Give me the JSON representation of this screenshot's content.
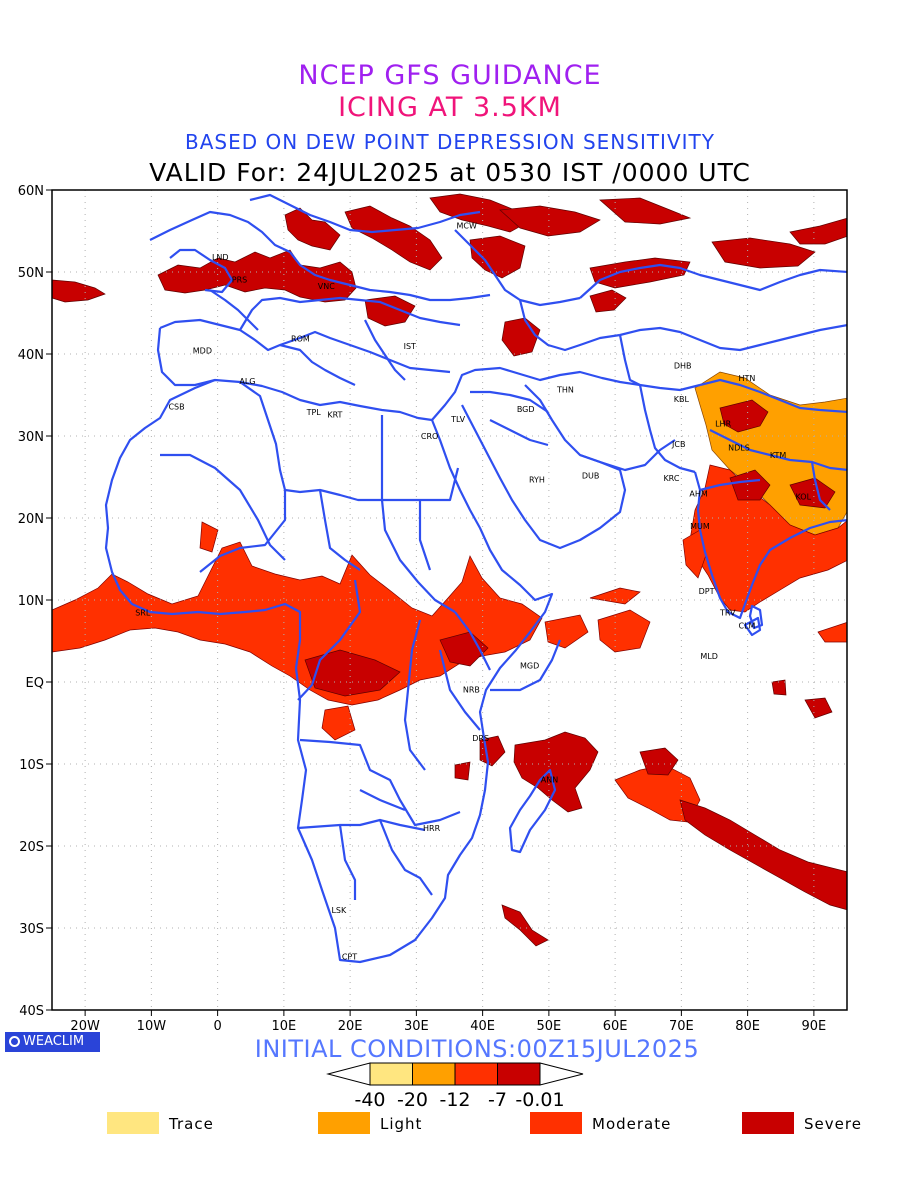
{
  "titles": {
    "line1": "NCEP GFS GUIDANCE",
    "line2": "ICING AT 3.5KM",
    "line3": "BASED ON DEW POINT DEPRESSION SENSITIVITY",
    "line4": "VALID For: 24JUL2025 at 0530 IST /0000 UTC"
  },
  "initial_conditions": "INITIAL CONDITIONS:00Z15JUL2025",
  "logo": "WEACLIM",
  "lon_ticks": [
    "20W",
    "10W",
    "0",
    "10E",
    "20E",
    "30E",
    "40E",
    "50E",
    "60E",
    "70E",
    "80E",
    "90E"
  ],
  "lat_ticks": [
    "60N",
    "50N",
    "40N",
    "30N",
    "20N",
    "10N",
    "EQ",
    "10S",
    "20S",
    "30S",
    "40S"
  ],
  "colorbar": {
    "colors": [
      "#ffe680",
      "#ffa000",
      "#ff3000",
      "#c80000"
    ],
    "labels": [
      "-40",
      "-20",
      "-12",
      "-7",
      "-0.01"
    ]
  },
  "legend": [
    {
      "label": "Trace",
      "color": "#ffe680"
    },
    {
      "label": "Light",
      "color": "#ffa000"
    },
    {
      "label": "Moderate",
      "color": "#ff3000"
    },
    {
      "label": "Severe",
      "color": "#c80000"
    }
  ],
  "stations": [
    {
      "code": "MCW",
      "lon": 37.6,
      "lat": 55.7
    },
    {
      "code": "LND",
      "lon": 0.4,
      "lat": 51.8
    },
    {
      "code": "PRS",
      "lon": 3.3,
      "lat": 49.1
    },
    {
      "code": "VNC",
      "lon": 16.4,
      "lat": 48.3
    },
    {
      "code": "ROM",
      "lon": 12.5,
      "lat": 41.9
    },
    {
      "code": "MDD",
      "lon": -2.3,
      "lat": 40.4
    },
    {
      "code": "IST",
      "lon": 29.0,
      "lat": 41.0
    },
    {
      "code": "ALG",
      "lon": 4.5,
      "lat": 36.7
    },
    {
      "code": "CSB",
      "lon": -6.2,
      "lat": 33.6
    },
    {
      "code": "TPL",
      "lon": 14.5,
      "lat": 32.9
    },
    {
      "code": "KRT",
      "lon": 17.7,
      "lat": 32.6
    },
    {
      "code": "CRO",
      "lon": 32.0,
      "lat": 30.0
    },
    {
      "code": "TLV",
      "lon": 36.3,
      "lat": 32.1
    },
    {
      "code": "BGD",
      "lon": 46.5,
      "lat": 33.3
    },
    {
      "code": "THN",
      "lon": 52.5,
      "lat": 35.7
    },
    {
      "code": "RYH",
      "lon": 48.2,
      "lat": 24.7
    },
    {
      "code": "DUB",
      "lon": 56.3,
      "lat": 25.2
    },
    {
      "code": "DHB",
      "lon": 70.2,
      "lat": 38.6
    },
    {
      "code": "KBL",
      "lon": 70.0,
      "lat": 34.5
    },
    {
      "code": "HTN",
      "lon": 79.9,
      "lat": 37.1
    },
    {
      "code": "JCB",
      "lon": 69.6,
      "lat": 29.0
    },
    {
      "code": "KRC",
      "lon": 68.5,
      "lat": 24.9
    },
    {
      "code": "AHM",
      "lon": 72.6,
      "lat": 23.0
    },
    {
      "code": "LHR",
      "lon": 76.3,
      "lat": 31.5
    },
    {
      "code": "NDLS",
      "lon": 78.7,
      "lat": 28.6
    },
    {
      "code": "KTM",
      "lon": 84.6,
      "lat": 27.7
    },
    {
      "code": "KOL",
      "lon": 88.4,
      "lat": 22.6
    },
    {
      "code": "MUM",
      "lon": 72.8,
      "lat": 19.0
    },
    {
      "code": "DPT",
      "lon": 73.8,
      "lat": 11.1
    },
    {
      "code": "TRV",
      "lon": 77.0,
      "lat": 8.5
    },
    {
      "code": "CLM",
      "lon": 79.9,
      "lat": 6.9
    },
    {
      "code": "MLD",
      "lon": 74.2,
      "lat": 3.2
    },
    {
      "code": "SRL",
      "lon": -11.3,
      "lat": 8.5
    },
    {
      "code": "MGD",
      "lon": 47.1,
      "lat": 2.0
    },
    {
      "code": "NRB",
      "lon": 38.3,
      "lat": -0.9
    },
    {
      "code": "DRS",
      "lon": 39.7,
      "lat": -6.8
    },
    {
      "code": "ANN",
      "lon": 50.1,
      "lat": -11.9
    },
    {
      "code": "HRR",
      "lon": 32.3,
      "lat": -17.8
    },
    {
      "code": "LSK",
      "lon": 18.3,
      "lat": -27.8
    },
    {
      "code": "CPT",
      "lon": 19.9,
      "lat": -33.5
    }
  ]
}
